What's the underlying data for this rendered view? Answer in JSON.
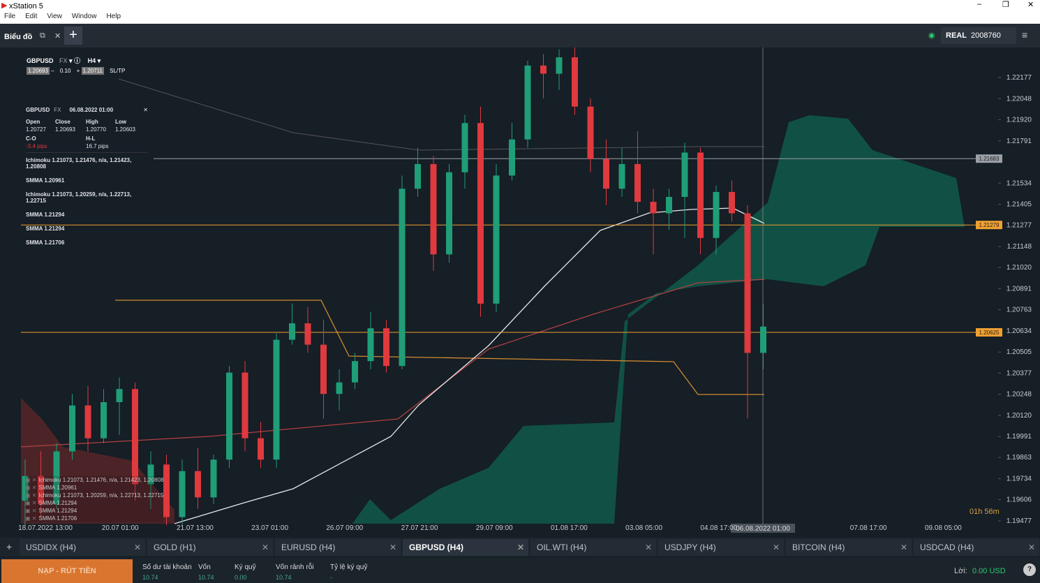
{
  "window": {
    "title": "xStation 5",
    "menu": [
      "File",
      "Edit",
      "View",
      "Window",
      "Help"
    ]
  },
  "toolbar": {
    "chart_menu": "Biểu đồ",
    "account_type": "REAL",
    "account_id": "2008760"
  },
  "symbol_bar": {
    "symbol": "GBPUSD",
    "market": "FX",
    "interval": "H4",
    "bid": "1.20693",
    "volume": "0.10",
    "ask": "1.20711",
    "sltp": "SL/TP"
  },
  "info_panel": {
    "symbol": "GBPUSD",
    "market": "FX",
    "date": "06.08.2022 01:00",
    "labels": [
      "Open",
      "Close",
      "High",
      "Low"
    ],
    "values": [
      "1.20727",
      "1.20693",
      "1.20770",
      "1.20603"
    ],
    "co_label": "C-O",
    "co_value": "-3.4 pips",
    "hl_label": "H-L",
    "hl_value": "16.7 pips",
    "indicators": [
      "Ichimoku  1.21073, 1.21476, n/a, 1.21423, 1.20808",
      "SMMA  1.20961",
      "Ichimoku  1.21073, 1.20259, n/a, 1.22713, 1.22715",
      "SMMA  1.21294",
      "SMMA  1.21294",
      "SMMA  1.21706"
    ]
  },
  "legend": [
    "Ichimoku 1.21073, 1.21476, n/a, 1.21423, 1.20808",
    "SMMA 1.20961",
    "Ichimoku 1.21073, 1.20259, n/a, 1.22713, 1.22715",
    "SMMA 1.21294",
    "SMMA 1.21294",
    "SMMA 1.21706"
  ],
  "chart_data": {
    "type": "candlestick",
    "name": "GBPUSD",
    "up_color": "#1f9e77",
    "down_color": "#e0393e",
    "ylim": [
      1.1946,
      1.2236
    ],
    "yticks": [
      {
        "value": 1.22177,
        "label": "1.22177"
      },
      {
        "value": 1.22048,
        "label": "1.22048"
      },
      {
        "value": 1.2192,
        "label": "1.21920"
      },
      {
        "value": 1.21791,
        "label": "1.21791"
      },
      {
        "value": 1.21534,
        "label": "1.21534"
      },
      {
        "value": 1.21405,
        "label": "1.21405"
      },
      {
        "value": 1.21277,
        "label": "1.21277"
      },
      {
        "value": 1.21148,
        "label": "1.21148"
      },
      {
        "value": 1.2102,
        "label": "1.21020"
      },
      {
        "value": 1.20891,
        "label": "1.20891"
      },
      {
        "value": 1.20763,
        "label": "1.20763"
      },
      {
        "value": 1.20634,
        "label": "1.20634"
      },
      {
        "value": 1.20505,
        "label": "1.20505"
      },
      {
        "value": 1.20377,
        "label": "1.20377"
      },
      {
        "value": 1.20248,
        "label": "1.20248"
      },
      {
        "value": 1.2012,
        "label": "1.20120"
      },
      {
        "value": 1.19991,
        "label": "1.19991"
      },
      {
        "value": 1.19863,
        "label": "1.19863"
      },
      {
        "value": 1.19734,
        "label": "1.19734"
      },
      {
        "value": 1.19606,
        "label": "1.19606"
      },
      {
        "value": 1.19477,
        "label": "1.19477"
      }
    ],
    "xticklabels": [
      "18.07.2022 13:00",
      "20.07 01:00",
      "21.07 13:00",
      "23.07 01:00",
      "26.07 09:00",
      "27.07 21:00",
      "29.07 09:00",
      "01.08 17:00",
      "03.08 05:00",
      "04.08 17:00",
      null,
      "07.08 17:00",
      "09.08 05:00"
    ],
    "cursor_label": "06.08.2022 01:00",
    "price_lines": [
      {
        "value": 1.21683,
        "label": "1.21683",
        "color": "#9aa0a6"
      },
      {
        "value": 1.21279,
        "label": "1.21279",
        "color": "#f0a030"
      },
      {
        "value": 1.20625,
        "label": "1.20625",
        "color": "#f0a030"
      }
    ],
    "countdown": "01h 56m",
    "open": [
      1.196,
      1.1975,
      1.1958,
      1.199,
      1.2018,
      1.1998,
      1.202,
      1.2028,
      1.197,
      1.1982,
      1.195,
      1.1978,
      1.1962,
      1.1985,
      1.2038,
      1.1998,
      1.1985,
      1.2058,
      1.2068,
      1.2055,
      1.2025,
      1.2032,
      1.2045,
      1.2065,
      1.2042,
      1.215,
      1.2165,
      1.211,
      1.216,
      1.219,
      1.208,
      1.2158,
      1.218,
      1.2225,
      1.222,
      1.223,
      1.22,
      1.2168,
      1.215,
      1.2165,
      1.2142,
      1.2135,
      1.2145,
      1.2172,
      1.212,
      1.2148,
      1.2135,
      1.205
    ],
    "high": [
      1.1985,
      1.199,
      1.1995,
      1.2025,
      1.203,
      1.2028,
      1.2035,
      1.2032,
      1.199,
      1.1988,
      1.1985,
      1.1992,
      1.1988,
      1.2042,
      1.2045,
      1.2008,
      1.2062,
      1.208,
      1.2078,
      1.207,
      1.204,
      1.205,
      1.2075,
      1.207,
      1.2158,
      1.2175,
      1.217,
      1.2165,
      1.2195,
      1.22,
      1.2165,
      1.219,
      1.2228,
      1.2232,
      1.2235,
      1.2236,
      1.2205,
      1.218,
      1.2175,
      1.2185,
      1.215,
      1.215,
      1.2178,
      1.2175,
      1.2152,
      1.2155,
      1.214,
      1.208
    ],
    "low": [
      1.1945,
      1.195,
      1.1955,
      1.1985,
      1.199,
      1.1995,
      1.2,
      1.196,
      1.1955,
      1.1945,
      1.1945,
      1.1955,
      1.1958,
      1.198,
      1.199,
      1.198,
      1.198,
      1.2055,
      1.205,
      1.201,
      1.2015,
      1.2028,
      1.204,
      1.2038,
      1.204,
      1.2145,
      1.21,
      1.2105,
      1.215,
      1.2072,
      1.2075,
      1.2155,
      1.2175,
      1.2205,
      1.221,
      1.2195,
      1.216,
      1.214,
      1.2145,
      1.2135,
      1.211,
      1.2125,
      1.212,
      1.211,
      1.211,
      1.213,
      1.201,
      1.204
    ],
    "close": [
      1.1975,
      1.1958,
      1.199,
      1.2018,
      1.1998,
      1.202,
      1.2028,
      1.197,
      1.1982,
      1.195,
      1.1978,
      1.1962,
      1.1985,
      1.2038,
      1.1998,
      1.1985,
      1.2058,
      1.2068,
      1.2055,
      1.2025,
      1.2032,
      1.2045,
      1.2065,
      1.2042,
      1.215,
      1.2165,
      1.211,
      1.216,
      1.219,
      1.208,
      1.2158,
      1.218,
      1.2225,
      1.222,
      1.223,
      1.22,
      1.2168,
      1.215,
      1.2165,
      1.2142,
      1.2135,
      1.2145,
      1.2172,
      1.212,
      1.2148,
      1.2135,
      1.205,
      1.2066
    ]
  },
  "tabs": [
    "USDIDX (H4)",
    "GOLD (H1)",
    "EURUSD (H4)",
    "GBPUSD (H4)",
    "OIL.WTI (H4)",
    "USDJPY (H4)",
    "BITCOIN (H4)",
    "USDCAD (H4)"
  ],
  "account": {
    "deposit_button": "NẠP - RÚT TIỀN",
    "fields": [
      {
        "label": "Số dư tài khoản",
        "value": "10.74"
      },
      {
        "label": "Vốn",
        "value": "10.74"
      },
      {
        "label": "Ký quỹ",
        "value": "0.00"
      },
      {
        "label": "Vốn rảnh rỗi",
        "value": "10.74"
      },
      {
        "label": "Tỷ lệ ký quỹ",
        "value": "-"
      }
    ],
    "profit_label": "Lời:",
    "profit_value": "0.00 USD"
  }
}
